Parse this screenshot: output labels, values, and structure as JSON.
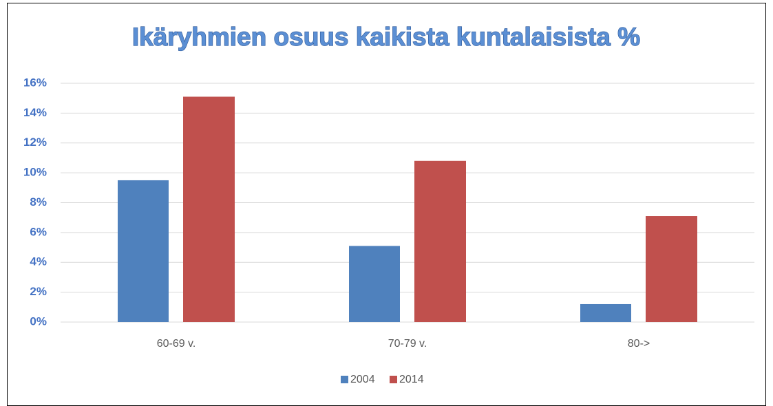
{
  "chart_data": {
    "type": "bar",
    "title": "Ikäryhmien osuus kaikista kuntalaisista %",
    "categories": [
      "60-69 v.",
      "70-79 v.",
      "80->"
    ],
    "series": [
      {
        "name": "2004",
        "color": "#4f81bd",
        "values": [
          9.5,
          5.1,
          1.2
        ]
      },
      {
        "name": "2014",
        "color": "#c0504d",
        "values": [
          15.1,
          10.8,
          7.1
        ]
      }
    ],
    "ylim": [
      0,
      16
    ],
    "yticks": [
      {
        "value": 0,
        "label": "0%"
      },
      {
        "value": 2,
        "label": "2%"
      },
      {
        "value": 4,
        "label": "4%"
      },
      {
        "value": 6,
        "label": "6%"
      },
      {
        "value": 8,
        "label": "8%"
      },
      {
        "value": 10,
        "label": "10%"
      },
      {
        "value": 12,
        "label": "12%"
      },
      {
        "value": 14,
        "label": "14%"
      },
      {
        "value": 16,
        "label": "16%"
      }
    ],
    "grid": true,
    "legend": "bottom"
  }
}
